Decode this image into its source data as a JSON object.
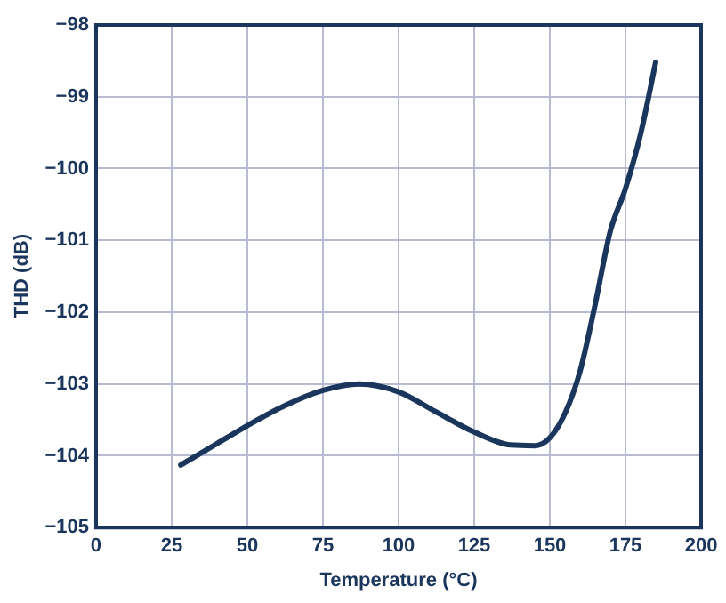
{
  "chart_data": {
    "type": "line",
    "xlabel": "Temperature (°C)",
    "ylabel": "THD (dB)",
    "x": [
      28,
      40,
      50,
      62,
      75,
      87,
      100,
      112,
      125,
      137,
      145,
      150,
      155,
      160,
      165,
      170,
      175,
      180,
      185
    ],
    "series": [
      {
        "color": "#1b365d",
        "values": [
          -104.13,
          -103.83,
          -103.58,
          -103.31,
          -103.09,
          -103.0,
          -103.11,
          -103.38,
          -103.67,
          -103.85,
          -103.86,
          -103.75,
          -103.41,
          -102.82,
          -101.89,
          -100.87,
          -100.28,
          -99.52,
          -98.52
        ]
      }
    ],
    "xlim": [
      0,
      200
    ],
    "xticks": [
      0,
      25,
      50,
      75,
      100,
      125,
      150,
      175,
      200
    ],
    "ylim": [
      -105,
      -98
    ],
    "yticks": [
      -105,
      -104,
      -103,
      -102,
      -101,
      -100,
      -99,
      -98
    ],
    "grid": true,
    "legend": false,
    "marker": "none",
    "line_style": "solid"
  }
}
